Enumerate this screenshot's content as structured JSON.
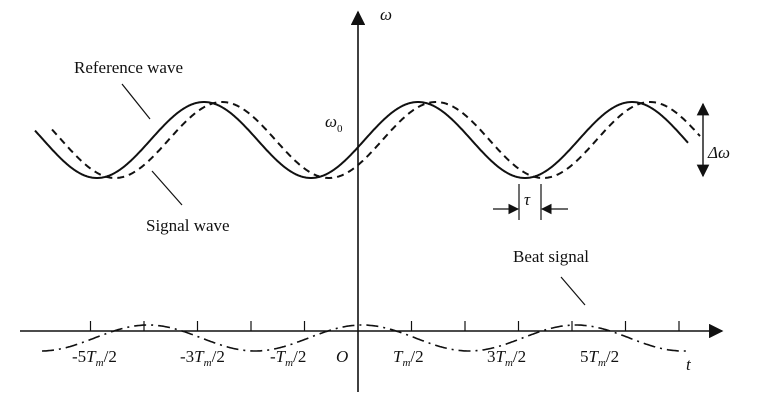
{
  "diagram": {
    "axes": {
      "y_label": "ω",
      "x_label": "t",
      "origin_label": "O",
      "omega0_main": "ω",
      "omega0_sub": "0"
    },
    "annotations": {
      "reference_wave": "Reference wave",
      "signal_wave": "Signal wave",
      "beat_signal": "Beat signal",
      "delta_omega": "Δω",
      "tau": "τ"
    },
    "tick_labels": [
      {
        "pre": "-5",
        "main": "T",
        "sub": "m",
        "post": "/2"
      },
      {
        "pre": "-3",
        "main": "T",
        "sub": "m",
        "post": "/2"
      },
      {
        "pre": "-",
        "main": "T",
        "sub": "m",
        "post": "/2"
      },
      {
        "pre": "",
        "main": "T",
        "sub": "m",
        "post": "/2"
      },
      {
        "pre": "3",
        "main": "T",
        "sub": "m",
        "post": "/2"
      },
      {
        "pre": "5",
        "main": "T",
        "sub": "m",
        "post": "/2"
      }
    ],
    "colors": {
      "ink": "#111111",
      "background": "#ffffff"
    }
  }
}
